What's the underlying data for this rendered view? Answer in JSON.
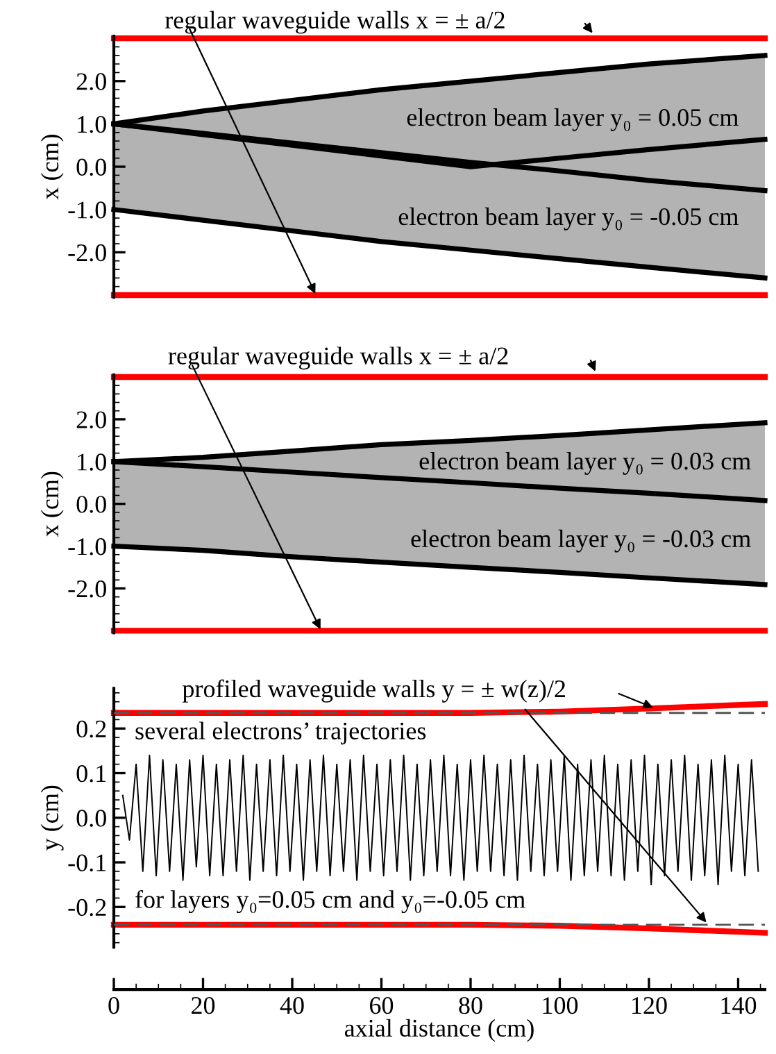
{
  "chart_data": [
    {
      "type": "line",
      "xlim": [
        0,
        146
      ],
      "ylim": [
        -3.05,
        3.05
      ],
      "ylabel": "x (cm)",
      "tick_labels": "y",
      "yticks": [
        {
          "value": 2,
          "label": "2.0"
        },
        {
          "value": 1,
          "label": "1.0"
        },
        {
          "value": 0,
          "label": "0.0"
        },
        {
          "value": -1,
          "label": "-1.0"
        },
        {
          "value": -2,
          "label": "-2.0"
        }
      ],
      "series": [
        {
          "color": "#000000",
          "x": [
            0,
            20,
            40,
            60,
            80,
            100,
            120,
            146
          ],
          "values": [
            1.0,
            1.3,
            1.55,
            1.8,
            2.0,
            2.2,
            2.4,
            2.6
          ],
          "lower": [
            -1.0,
            -1.25,
            -1.5,
            -1.75,
            -1.95,
            -2.15,
            -2.35,
            -2.6
          ],
          "upper": [
            1.0,
            1.3,
            1.55,
            1.8,
            2.0,
            2.2,
            2.4,
            2.6
          ]
        },
        {
          "color": "#000000",
          "x": [
            0,
            20,
            40,
            60,
            80,
            100,
            120,
            146
          ],
          "values": [
            1.0,
            0.75,
            0.5,
            0.25,
            0.0,
            0.2,
            0.4,
            0.64
          ]
        },
        {
          "color": "#000000",
          "x": [
            0,
            20,
            40,
            60,
            80,
            100,
            120,
            146
          ],
          "values": [
            1.0,
            0.78,
            0.55,
            0.33,
            0.1,
            -0.1,
            -0.32,
            -0.56
          ]
        },
        {
          "color": "#000000",
          "x": [
            0,
            20,
            40,
            60,
            80,
            100,
            120,
            146
          ],
          "values": [
            -1.0,
            -1.25,
            -1.5,
            -1.75,
            -1.95,
            -2.15,
            -2.35,
            -2.6
          ]
        },
        {
          "color": "#ff0000",
          "x": [
            0,
            146
          ],
          "values": [
            3,
            3
          ]
        },
        {
          "color": "#ff0000",
          "x": [
            0,
            146
          ],
          "values": [
            -3,
            -3
          ]
        }
      ],
      "annotations": [
        "regular waveguide walls x = ± a/2",
        "electron beam layer y₀ = 0.05 cm",
        "electron beam layer y₀ = -0.05 cm"
      ]
    },
    {
      "type": "line",
      "xlim": [
        0,
        146
      ],
      "ylim": [
        -3.05,
        3.05
      ],
      "ylabel": "x (cm)",
      "tick_labels": "y",
      "yticks": [
        {
          "value": 2,
          "label": "2.0"
        },
        {
          "value": 1,
          "label": "1.0"
        },
        {
          "value": 0,
          "label": "0.0"
        },
        {
          "value": -1,
          "label": "-1.0"
        },
        {
          "value": -2,
          "label": "-2.0"
        }
      ],
      "series": [
        {
          "color": "#000000",
          "x": [
            0,
            20,
            40,
            60,
            80,
            100,
            120,
            146
          ],
          "values": [
            1.0,
            1.1,
            1.25,
            1.4,
            1.5,
            1.62,
            1.75,
            1.92
          ],
          "lower": [
            -1.0,
            -1.1,
            -1.25,
            -1.38,
            -1.5,
            -1.62,
            -1.75,
            -1.91
          ],
          "upper": [
            1.0,
            1.1,
            1.25,
            1.4,
            1.5,
            1.62,
            1.75,
            1.92
          ]
        },
        {
          "color": "#000000",
          "x": [
            0,
            20,
            40,
            60,
            80,
            100,
            120,
            146
          ],
          "values": [
            1.0,
            0.88,
            0.75,
            0.62,
            0.5,
            0.37,
            0.25,
            0.08
          ]
        },
        {
          "color": "#000000",
          "x": [
            0,
            20,
            40,
            60,
            80,
            100,
            120,
            146
          ],
          "values": [
            -1.0,
            -1.1,
            -1.25,
            -1.38,
            -1.5,
            -1.62,
            -1.75,
            -1.91
          ]
        },
        {
          "color": "#ff0000",
          "x": [
            0,
            146
          ],
          "values": [
            3,
            3
          ]
        },
        {
          "color": "#ff0000",
          "x": [
            0,
            146
          ],
          "values": [
            -3,
            -3
          ]
        }
      ],
      "annotations": [
        "regular waveguide walls x = ± a/2",
        "electron beam layer y₀ = 0.03 cm",
        "electron beam layer y₀ = -0.03 cm"
      ]
    },
    {
      "type": "line",
      "xlim": [
        0,
        146
      ],
      "ylim": [
        -0.29,
        0.29
      ],
      "ylabel": "y (cm)",
      "xlabel": "axial distance (cm)",
      "xticks": [
        0,
        20,
        40,
        60,
        80,
        100,
        120,
        140
      ],
      "yticks": [
        {
          "value": 0.2,
          "label": "0.2"
        },
        {
          "value": 0.1,
          "label": "0.1"
        },
        {
          "value": 0,
          "label": "0.0"
        },
        {
          "value": -0.1,
          "label": "-0.1"
        },
        {
          "value": -0.2,
          "label": "-0.2"
        }
      ],
      "series": [
        {
          "color": "#000000",
          "x": [
            2,
            3.5,
            5,
            6.5,
            8,
            9.5,
            11,
            12.5,
            14,
            15.5,
            17,
            18.5,
            20,
            21.5,
            23,
            24.5,
            26,
            27.5,
            29,
            30.5,
            32,
            33.5,
            35,
            36.5,
            38,
            39.5,
            41,
            42.5,
            44,
            45.5,
            47,
            48.5,
            50,
            51.5,
            53,
            54.5,
            56,
            57.5,
            59,
            60.5,
            62,
            63.5,
            65,
            66.5,
            68,
            69.5,
            71,
            72.5,
            74,
            75.5,
            77,
            78.5,
            80,
            81.5,
            83,
            84.5,
            86,
            87.5,
            89,
            90.5,
            92,
            93.5,
            95,
            96.5,
            98,
            99.5,
            101,
            102.5,
            104,
            105.5,
            107,
            108.5,
            110,
            111.5,
            113,
            114.5,
            116,
            117.5,
            119,
            120.5,
            122,
            123.5,
            125,
            126.5,
            128,
            129.5,
            131,
            132.5,
            134,
            135.5,
            137,
            138.5,
            140,
            141.5,
            143,
            144.5
          ],
          "values": [
            0.05,
            -0.05,
            0.12,
            -0.12,
            0.14,
            -0.13,
            0.13,
            -0.12,
            0.12,
            -0.14,
            0.13,
            -0.11,
            0.14,
            -0.13,
            0.12,
            -0.13,
            0.13,
            -0.12,
            0.14,
            -0.14,
            0.12,
            -0.12,
            0.13,
            -0.13,
            0.14,
            -0.12,
            0.12,
            -0.14,
            0.13,
            -0.12,
            0.14,
            -0.13,
            0.12,
            -0.12,
            0.13,
            -0.14,
            0.14,
            -0.12,
            0.12,
            -0.13,
            0.13,
            -0.12,
            0.14,
            -0.14,
            0.12,
            -0.13,
            0.13,
            -0.12,
            0.14,
            -0.13,
            0.12,
            -0.14,
            0.13,
            -0.12,
            0.14,
            -0.12,
            0.12,
            -0.13,
            0.13,
            -0.14,
            0.14,
            -0.12,
            0.12,
            -0.13,
            0.13,
            -0.12,
            0.14,
            -0.14,
            0.12,
            -0.13,
            0.13,
            -0.12,
            0.14,
            -0.13,
            0.12,
            -0.14,
            0.13,
            -0.12,
            0.14,
            -0.15,
            0.12,
            -0.13,
            0.13,
            -0.12,
            0.14,
            -0.14,
            0.12,
            -0.13,
            0.13,
            -0.15,
            0.14,
            -0.12,
            0.12,
            -0.13,
            0.13,
            -0.12
          ]
        },
        {
          "color": "#ff0000",
          "x": [
            0,
            20,
            40,
            60,
            80,
            100,
            120,
            146
          ],
          "values": [
            0.235,
            0.235,
            0.235,
            0.235,
            0.235,
            0.238,
            0.245,
            0.255
          ]
        },
        {
          "color": "#ff0000",
          "x": [
            0,
            20,
            40,
            60,
            80,
            100,
            120,
            146
          ],
          "values": [
            -0.24,
            -0.24,
            -0.24,
            -0.24,
            -0.24,
            -0.242,
            -0.248,
            -0.258
          ]
        },
        {
          "color": "#555555",
          "line_style": "dashed",
          "x": [
            0,
            146
          ],
          "values": [
            0.235,
            0.235
          ]
        },
        {
          "color": "#555555",
          "line_style": "dashed",
          "x": [
            0,
            146
          ],
          "values": [
            -0.24,
            -0.24
          ]
        }
      ],
      "annotations": [
        "profiled waveguide walls y = ± w(z)/2",
        "several electrons’ trajectories",
        "for layers y₀=0.05 cm and y₀=-0.05 cm"
      ]
    }
  ]
}
